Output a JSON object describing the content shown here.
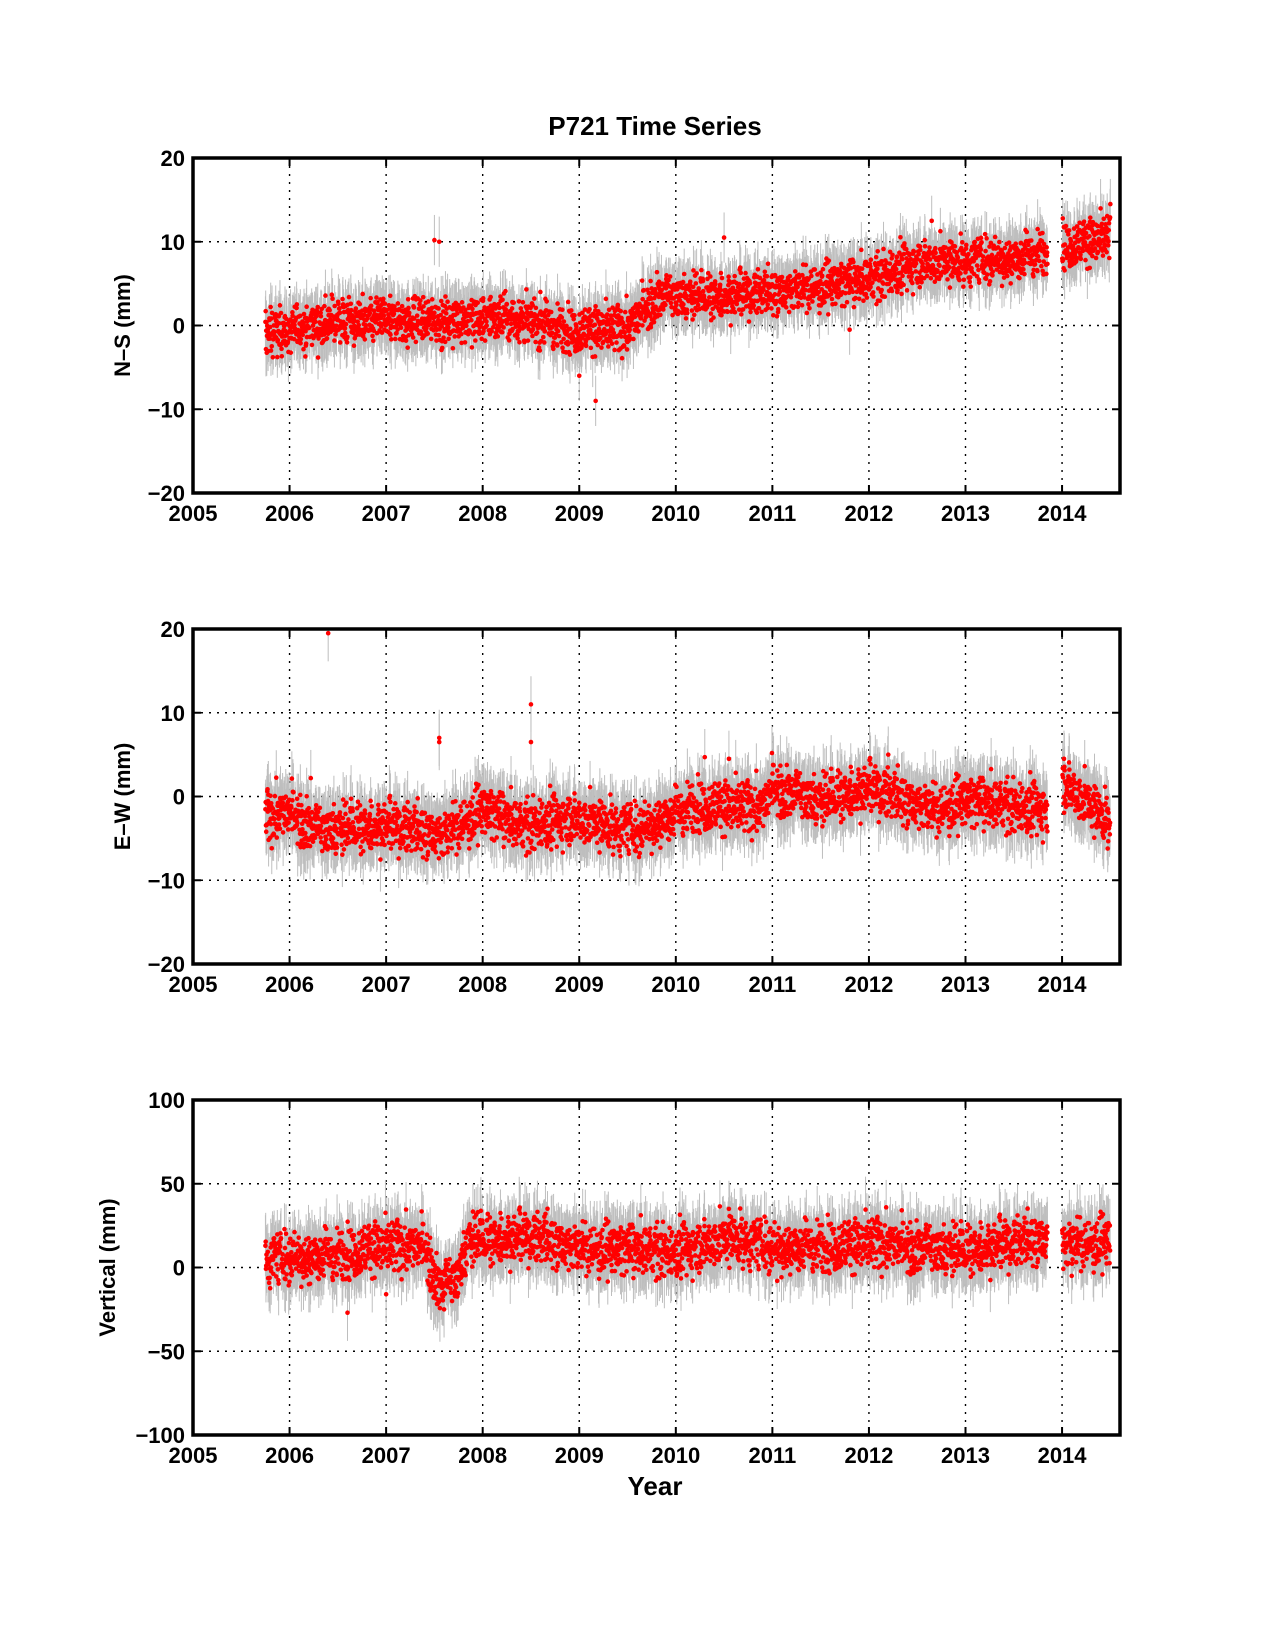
{
  "chart_data": {
    "title": "P721 Time Series",
    "xlabel": "Year",
    "colors": {
      "points": "#ff0000",
      "error_bars": "#bebebe",
      "grid": "#000000"
    },
    "panels": [
      {
        "type": "scatter",
        "ylabel": "N–S (mm)",
        "xlim": [
          2005,
          2014.6
        ],
        "ylim": [
          -20,
          20
        ],
        "xticks": [
          2005,
          2006,
          2007,
          2008,
          2009,
          2010,
          2011,
          2012,
          2013,
          2014
        ],
        "yticks": [
          -20,
          -10,
          0,
          10,
          20
        ],
        "grid": true,
        "error_bar_mm": 2.5,
        "data_range": [
          2005.75,
          2014.5
        ],
        "gaps": [
          [
            2013.85,
            2014.0
          ]
        ],
        "trend": [
          [
            2005.75,
            -1.0
          ],
          [
            2006.5,
            0.5
          ],
          [
            2007.5,
            0.5
          ],
          [
            2008.3,
            1.0
          ],
          [
            2008.9,
            -0.5
          ],
          [
            2009.5,
            -0.5
          ],
          [
            2009.8,
            3.5
          ],
          [
            2010.5,
            3.5
          ],
          [
            2011.0,
            4.0
          ],
          [
            2012.0,
            5.5
          ],
          [
            2012.5,
            7.5
          ],
          [
            2013.5,
            8.0
          ],
          [
            2013.85,
            9.0
          ],
          [
            2014.0,
            9.5
          ],
          [
            2014.5,
            10.5
          ]
        ],
        "outliers": [
          [
            2007.5,
            10.2
          ],
          [
            2007.55,
            10.0
          ],
          [
            2009.17,
            -9.0
          ],
          [
            2009.0,
            -6.0
          ],
          [
            2010.5,
            10.5
          ],
          [
            2012.65,
            12.5
          ],
          [
            2014.5,
            14.5
          ],
          [
            2011.8,
            -0.5
          ]
        ]
      },
      {
        "type": "scatter",
        "ylabel": "E–W (mm)",
        "xlim": [
          2005,
          2014.6
        ],
        "ylim": [
          -20,
          20
        ],
        "xticks": [
          2005,
          2006,
          2007,
          2008,
          2009,
          2010,
          2011,
          2012,
          2013,
          2014
        ],
        "yticks": [
          -20,
          -10,
          0,
          10,
          20
        ],
        "grid": true,
        "error_bar_mm": 2.8,
        "data_range": [
          2005.75,
          2014.5
        ],
        "gaps": [
          [
            2013.85,
            2014.0
          ]
        ],
        "trend": [
          [
            2005.75,
            -2.5
          ],
          [
            2006.0,
            -2.0
          ],
          [
            2006.3,
            -4.0
          ],
          [
            2007.0,
            -3.5
          ],
          [
            2007.6,
            -4.5
          ],
          [
            2008.0,
            -1.5
          ],
          [
            2008.4,
            -3.5
          ],
          [
            2008.9,
            -2.5
          ],
          [
            2009.6,
            -4.0
          ],
          [
            2010.2,
            -1.0
          ],
          [
            2010.9,
            -1.5
          ],
          [
            2011.0,
            1.0
          ],
          [
            2011.5,
            -0.5
          ],
          [
            2012.0,
            1.0
          ],
          [
            2012.4,
            -0.5
          ],
          [
            2012.7,
            -1.5
          ],
          [
            2013.0,
            -0.5
          ],
          [
            2013.85,
            -1.5
          ],
          [
            2014.03,
            1.5
          ],
          [
            2014.5,
            -3.0
          ]
        ],
        "outliers": [
          [
            2006.4,
            19.5
          ],
          [
            2008.5,
            11.0
          ],
          [
            2008.5,
            6.5
          ],
          [
            2007.55,
            7.0
          ],
          [
            2007.55,
            6.5
          ],
          [
            2006.22,
            2.2
          ],
          [
            2010.3,
            4.7
          ],
          [
            2010.55,
            4.5
          ],
          [
            2012.2,
            5.0
          ],
          [
            2014.02,
            4.5
          ]
        ]
      },
      {
        "type": "scatter",
        "ylabel": "Vertical (mm)",
        "xlim": [
          2005,
          2014.6
        ],
        "ylim": [
          -100,
          100
        ],
        "xticks": [
          2005,
          2006,
          2007,
          2008,
          2009,
          2010,
          2011,
          2012,
          2013,
          2014
        ],
        "yticks": [
          -100,
          -50,
          0,
          50,
          100
        ],
        "grid": true,
        "error_bar_mm": 14,
        "data_range": [
          2005.75,
          2014.5
        ],
        "gaps": [
          [
            2013.85,
            2014.0
          ]
        ],
        "trend": [
          [
            2005.75,
            5.0
          ],
          [
            2006.5,
            8.0
          ],
          [
            2006.9,
            12.0
          ],
          [
            2007.4,
            12.0
          ],
          [
            2007.55,
            -12.0
          ],
          [
            2007.75,
            -5.0
          ],
          [
            2007.85,
            16.0
          ],
          [
            2008.5,
            18.0
          ],
          [
            2009.0,
            12.0
          ],
          [
            2010.0,
            10.0
          ],
          [
            2010.6,
            18.0
          ],
          [
            2011.0,
            12.0
          ],
          [
            2012.0,
            14.0
          ],
          [
            2012.5,
            12.0
          ],
          [
            2013.0,
            10.0
          ],
          [
            2013.85,
            18.0
          ],
          [
            2014.0,
            14.0
          ],
          [
            2014.5,
            16.0
          ]
        ],
        "outliers": [
          [
            2006.6,
            -27.0
          ],
          [
            2007.6,
            -25.0
          ],
          [
            2008.65,
            32.0
          ],
          [
            2007.95,
            33.0
          ],
          [
            2010.55,
            35.0
          ],
          [
            2006.2,
            -10.0
          ],
          [
            2014.1,
            -5.0
          ],
          [
            2007.0,
            -16.0
          ],
          [
            2011.05,
            -8.0
          ]
        ]
      }
    ]
  }
}
